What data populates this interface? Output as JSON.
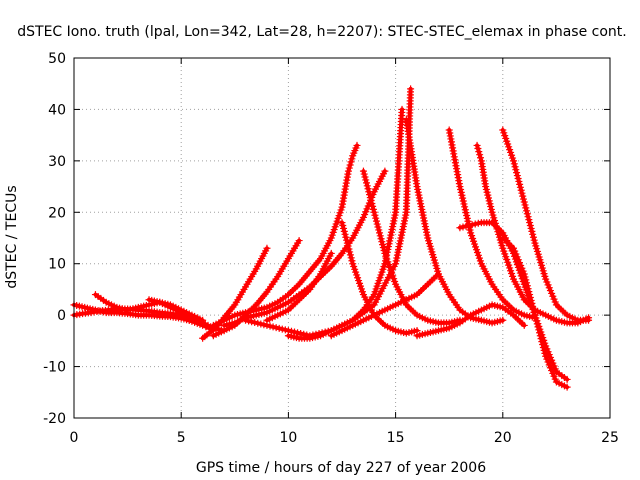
{
  "chart_data": {
    "type": "scatter",
    "title": "dSTEC Iono. truth (lpal, Lon=342, Lat=28, h=2207): STEC-STEC_elemax in phase cont.",
    "xlabel": "GPS time / hours of day 227 of year 2006",
    "ylabel": "dSTEC  / TECUs",
    "xlim": [
      0,
      25
    ],
    "ylim": [
      -20,
      50
    ],
    "xticks": [
      0,
      5,
      10,
      15,
      20,
      25
    ],
    "yticks": [
      -20,
      -10,
      0,
      10,
      20,
      30,
      40,
      50
    ],
    "grid": true,
    "marker": "+",
    "color": "#ff0000",
    "series": [
      {
        "x": [
          0,
          0.5,
          1,
          1.5,
          2,
          2.5,
          3,
          3.5,
          4,
          4.5,
          5,
          5.5,
          6,
          6.3
        ],
        "y": [
          2,
          1.5,
          1,
          0.5,
          0.5,
          0.3,
          0,
          0,
          -0.2,
          -0.3,
          -0.6,
          -1.2,
          -2,
          -2.5
        ]
      },
      {
        "x": [
          0,
          0.4,
          0.8,
          1.2,
          1.6,
          2,
          2.5,
          3,
          3.5,
          4,
          4.5,
          5,
          5.5,
          6,
          6.3
        ],
        "y": [
          0,
          0.3,
          0.5,
          0.8,
          1,
          1.2,
          1.2,
          1,
          0.8,
          0.5,
          0.3,
          0,
          -0.5,
          -1.5,
          -2.5
        ]
      },
      {
        "x": [
          1,
          1.5,
          2,
          2.5,
          3,
          3.5,
          4,
          4.5,
          5,
          5.5,
          6
        ],
        "y": [
          4,
          2.5,
          1.5,
          1,
          1.5,
          2,
          2.5,
          2,
          1,
          0,
          -1
        ]
      },
      {
        "x": [
          3.5,
          4,
          4.5,
          5,
          5.5,
          6,
          6.5,
          7
        ],
        "y": [
          3,
          2.5,
          1.5,
          0.5,
          -0.5,
          -1.5,
          -2.5,
          -3
        ]
      },
      {
        "x": [
          6,
          6.3,
          6.6,
          7,
          7.5,
          8,
          8.5,
          9
        ],
        "y": [
          -4.5,
          -3.5,
          -2.5,
          -0.5,
          2,
          5.5,
          9,
          13
        ]
      },
      {
        "x": [
          6.5,
          7,
          7.5,
          8,
          8.5,
          9,
          9.5,
          10,
          10.5
        ],
        "y": [
          -4,
          -3,
          -2,
          0,
          2,
          4.5,
          7.5,
          11,
          14.5
        ]
      },
      {
        "x": [
          6.5,
          7,
          7.5,
          8,
          8.5,
          9,
          9.5,
          10,
          10.5,
          11,
          11.5,
          12,
          12.5,
          12.8,
          13,
          13.2
        ],
        "y": [
          -2,
          -1,
          0,
          0.5,
          1,
          1.5,
          2.5,
          4,
          6,
          8.5,
          11,
          15,
          21,
          28,
          31,
          33
        ]
      },
      {
        "x": [
          7,
          7.5,
          8,
          8.5,
          9,
          9.5,
          10,
          10.5,
          11,
          11.5,
          12,
          12.5,
          13,
          13.5,
          14,
          14.5
        ],
        "y": [
          -2,
          -1.5,
          -0.5,
          0,
          0.5,
          1.5,
          2.5,
          4,
          5.5,
          7.5,
          9.5,
          12,
          15,
          19,
          24,
          28
        ]
      },
      {
        "x": [
          8,
          9,
          10,
          11,
          12,
          13,
          14,
          15,
          15.5,
          15.7
        ],
        "y": [
          -1,
          -2,
          -3,
          -4,
          -3,
          -1,
          2,
          10,
          20,
          44
        ]
      },
      {
        "x": [
          10,
          10.5,
          11,
          11.5,
          12,
          12.5,
          13,
          13.5,
          14,
          14.5,
          15,
          15.3
        ],
        "y": [
          -4,
          -4.5,
          -4.5,
          -4,
          -3,
          -2,
          -1,
          1,
          4,
          10,
          20,
          40
        ]
      },
      {
        "x": [
          12.5,
          13,
          13.5,
          14,
          14.5,
          15,
          15.5,
          16
        ],
        "y": [
          18,
          10,
          4,
          0,
          -2,
          -3,
          -3.5,
          -3
        ]
      },
      {
        "x": [
          13.5,
          14,
          14.5,
          15,
          15.5,
          16,
          16.5,
          17,
          17.5,
          18
        ],
        "y": [
          28,
          20,
          12,
          6,
          2,
          0,
          -1,
          -1.5,
          -1.5,
          -1
        ]
      },
      {
        "x": [
          15.5,
          16,
          16.5,
          17,
          17.5,
          18,
          18.5,
          19,
          19.5,
          20
        ],
        "y": [
          38,
          25,
          15,
          8,
          4,
          1,
          -0.5,
          -1,
          -1.5,
          -1
        ]
      },
      {
        "x": [
          17.5,
          18,
          18.5,
          19,
          19.5,
          20,
          20.5,
          21,
          21.5
        ],
        "y": [
          36,
          25,
          16,
          10,
          6,
          3,
          1,
          0,
          -0.5
        ]
      },
      {
        "x": [
          18.8,
          19,
          19.2,
          19.5,
          20,
          20.5,
          21,
          21.5,
          22,
          22.5,
          23,
          23.5,
          24
        ],
        "y": [
          33,
          30,
          25,
          20,
          13,
          7,
          3,
          1,
          0,
          -1,
          -1.5,
          -1.5,
          -0.5
        ]
      },
      {
        "x": [
          20,
          20.5,
          21,
          21.5,
          22,
          22.5,
          23,
          23.5,
          24
        ],
        "y": [
          36,
          30,
          22,
          14,
          7,
          2,
          0,
          -1,
          -1
        ]
      },
      {
        "x": [
          18,
          19,
          19.5,
          20,
          20.5,
          21,
          21.5,
          22,
          22.5,
          23
        ],
        "y": [
          17,
          18,
          18,
          16,
          12,
          6,
          0,
          -6,
          -11,
          -12.5
        ]
      },
      {
        "x": [
          20,
          20.5,
          21,
          21.5,
          22,
          22.5,
          23
        ],
        "y": [
          15,
          13,
          8,
          0,
          -8,
          -13,
          -14
        ]
      },
      {
        "x": [
          16,
          16.5,
          17,
          17.5,
          18,
          18.5,
          19,
          19.5,
          20,
          20.5,
          21
        ],
        "y": [
          -4,
          -3.5,
          -3,
          -2.5,
          -1.5,
          0,
          1,
          2,
          1.5,
          0,
          -2
        ]
      },
      {
        "x": [
          12,
          12.5,
          13,
          13.5,
          14,
          14.5,
          15,
          15.5,
          16,
          16.5,
          17
        ],
        "y": [
          -4,
          -3,
          -2,
          -1,
          0,
          1,
          2,
          3,
          4,
          6,
          8
        ]
      },
      {
        "x": [
          9,
          9.5,
          10,
          10.5,
          11,
          11.5,
          12
        ],
        "y": [
          -1,
          0,
          1,
          3,
          5,
          8,
          12
        ]
      }
    ]
  }
}
